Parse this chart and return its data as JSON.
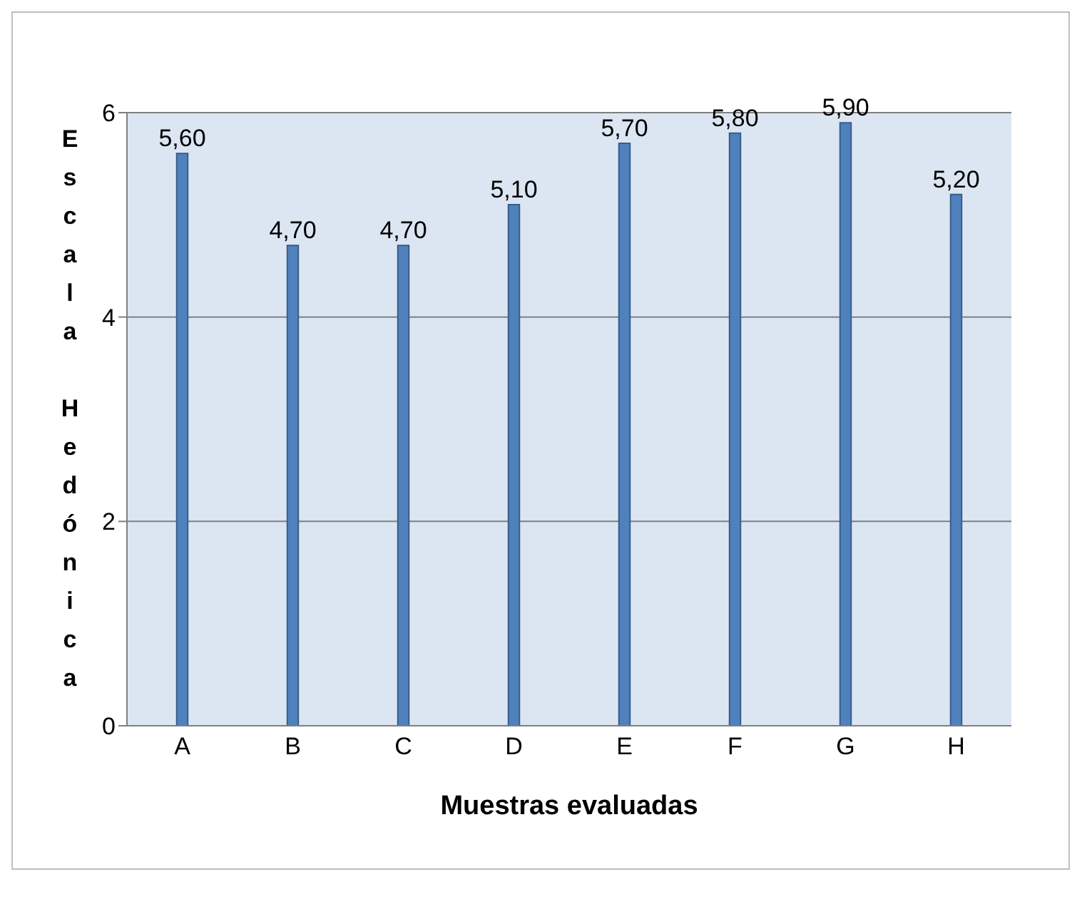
{
  "chart_data": {
    "type": "bar",
    "categories": [
      "A",
      "B",
      "C",
      "D",
      "E",
      "F",
      "G",
      "H"
    ],
    "values": [
      5.6,
      4.7,
      4.7,
      5.1,
      5.7,
      5.8,
      5.9,
      5.2
    ],
    "value_labels": [
      "5,60",
      "4,70",
      "4,70",
      "5,10",
      "5,70",
      "5,80",
      "5,90",
      "5,20"
    ],
    "color": "#4f81bd",
    "ylim": [
      0,
      6
    ],
    "yticks": [
      0,
      2,
      4,
      6
    ],
    "grid": "y",
    "xlabel": "Muestras evaluadas",
    "ylabel": "Escala Hedónica"
  }
}
